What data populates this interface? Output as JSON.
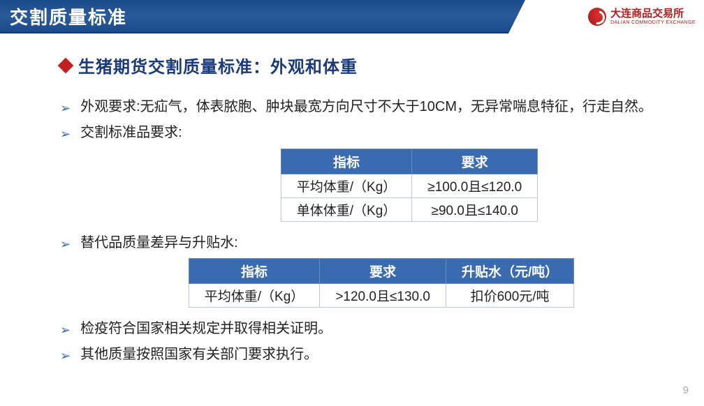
{
  "header": {
    "title": "交割质量标准",
    "logo_cn": "大连商品交易所",
    "logo_en": "DALIAN COMMODITY EXCHANGE"
  },
  "heading": "生猪期货交割质量标准：外观和体重",
  "bullets": {
    "b1": "外观要求:无疝气，体表脓胞、肿块最宽方向尺寸不大于10CM，无异常喘息特征，行走自然。",
    "b2": "交割标准品要求:",
    "b3": "替代品质量差异与升贴水:",
    "b4": "检疫符合国家相关规定并取得相关证明。",
    "b5": "其他质量按照国家有关部门要求执行。"
  },
  "table1": {
    "headers": {
      "c0": "指标",
      "c1": "要求"
    },
    "rows": {
      "r0": {
        "c0": "平均体重/（Kg）",
        "c1": "≥100.0且≤120.0"
      },
      "r1": {
        "c0": "单体体重/（Kg）",
        "c1": "≥90.0且≤140.0"
      }
    },
    "header_bg": "#3a6ab0",
    "header_fg": "#ffffff",
    "border_color": "#bcc8dc"
  },
  "table2": {
    "headers": {
      "c0": "指标",
      "c1": "要求",
      "c2": "升贴水（元/吨）"
    },
    "rows": {
      "r0": {
        "c0": "平均体重/（Kg）",
        "c1": ">120.0且≤130.0",
        "c2": "扣价600元/吨"
      }
    },
    "header_bg": "#3a6ab0",
    "header_fg": "#ffffff",
    "border_color": "#bcc8dc"
  },
  "page_number": "9",
  "colors": {
    "header_bar": "#1a4a8a",
    "heading_text": "#1a3a7a",
    "diamond": "#c02020",
    "arrow": "#3a6ab0",
    "logo": "#b02020",
    "body_text": "#222222",
    "page_num": "#aaaaaa"
  }
}
